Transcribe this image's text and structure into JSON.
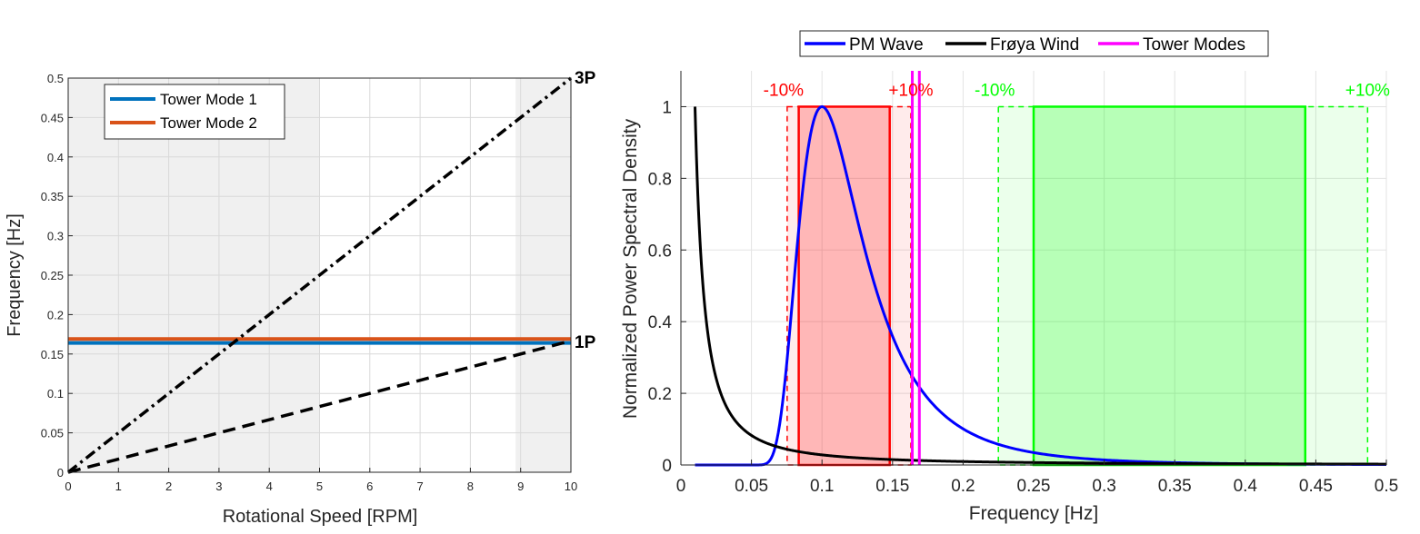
{
  "chart_data": [
    {
      "type": "line",
      "xlabel": "Rotational Speed [RPM]",
      "ylabel": "Frequency [Hz]",
      "xlim": [
        0,
        10
      ],
      "ylim": [
        0,
        0.5
      ],
      "xticks": [
        "0",
        "1",
        "2",
        "3",
        "4",
        "5",
        "6",
        "7",
        "8",
        "9",
        "10"
      ],
      "yticks": [
        "0",
        "0.05",
        "0.1",
        "0.15",
        "0.2",
        "0.25",
        "0.3",
        "0.35",
        "0.4",
        "0.45",
        "0.5"
      ],
      "grid": true,
      "legend_position": "top-left",
      "shaded_regions": [
        {
          "x": [
            0,
            5
          ],
          "color": "#f0f0f0"
        },
        {
          "x": [
            8.9,
            10
          ],
          "color": "#f0f0f0"
        }
      ],
      "series": [
        {
          "name": "Tower Mode 1",
          "color": "#0072bd",
          "x": [
            0,
            10
          ],
          "y": [
            0.164,
            0.164
          ],
          "style": "solid"
        },
        {
          "name": "Tower Mode 2",
          "color": "#d95319",
          "x": [
            0,
            10
          ],
          "y": [
            0.169,
            0.169
          ],
          "style": "solid"
        }
      ],
      "lines": [
        {
          "label": "3P",
          "color": "#000000",
          "x": [
            0,
            10
          ],
          "y": [
            0,
            0.5
          ],
          "style": "dashdot"
        },
        {
          "label": "1P",
          "color": "#000000",
          "x": [
            0,
            10
          ],
          "y": [
            0,
            0.1667
          ],
          "style": "dashed"
        }
      ]
    },
    {
      "type": "line",
      "xlabel": "Frequency [Hz]",
      "ylabel": "Normalized Power Spectral Density",
      "xlim": [
        0,
        0.5
      ],
      "ylim": [
        0,
        1.1
      ],
      "xticks": [
        "0",
        "0.05",
        "0.1",
        "0.15",
        "0.2",
        "0.25",
        "0.3",
        "0.35",
        "0.4",
        "0.45",
        "0.5"
      ],
      "yticks": [
        "0",
        "0.2",
        "0.4",
        "0.6",
        "0.8",
        "1"
      ],
      "grid": true,
      "legend_position": "top-outside",
      "series": [
        {
          "name": "PM Wave",
          "color": "#0000ff",
          "peak_hz": 0.1,
          "x_start": 0.01,
          "x_end": 0.5,
          "sample_points": [
            [
              0.05,
              0.0
            ],
            [
              0.07,
              0.1
            ],
            [
              0.08,
              0.55
            ],
            [
              0.09,
              0.93
            ],
            [
              0.1,
              1.0
            ],
            [
              0.12,
              0.85
            ],
            [
              0.15,
              0.52
            ],
            [
              0.2,
              0.22
            ],
            [
              0.25,
              0.035
            ],
            [
              0.3,
              0.016
            ],
            [
              0.4,
              0.008
            ],
            [
              0.5,
              0.005
            ]
          ]
        },
        {
          "name": "Frøya Wind",
          "color": "#000000",
          "x_start": 0.01,
          "x_end": 0.5,
          "sample_points": [
            [
              0.01,
              1.0
            ],
            [
              0.02,
              0.67
            ],
            [
              0.03,
              0.39
            ],
            [
              0.05,
              0.15
            ],
            [
              0.075,
              0.06
            ],
            [
              0.1,
              0.035
            ],
            [
              0.15,
              0.02
            ],
            [
              0.2,
              0.013
            ],
            [
              0.3,
              0.008
            ],
            [
              0.5,
              0.005
            ]
          ]
        },
        {
          "name": "Tower Modes",
          "color": "#ff00ff",
          "x": [
            0.164,
            0.169
          ],
          "style": "vertical"
        }
      ],
      "regions": [
        {
          "color": "#ff0000",
          "x_range": [
            0.0835,
            0.148
          ],
          "height": 1,
          "lower_dashed": 0.0753,
          "upper_dashed": 0.163,
          "labels": [
            "-10%",
            "+10%"
          ]
        },
        {
          "color": "#00ff00",
          "x_range": [
            0.25,
            0.4425
          ],
          "height": 1,
          "lower_dashed": 0.225,
          "upper_dashed": 0.4867,
          "labels": [
            "-10%",
            "+10%"
          ]
        }
      ]
    }
  ]
}
